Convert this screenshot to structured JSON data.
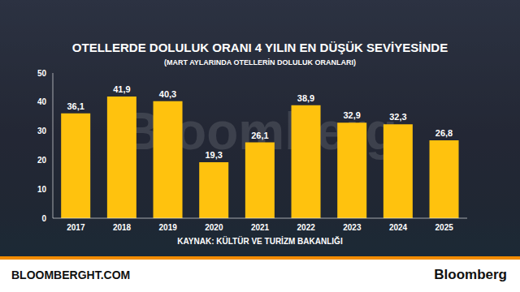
{
  "chart_data": {
    "type": "bar",
    "title": "OTELLERDE DOLULUK ORANI 4 YILIN EN DÜŞÜK SEVİYESİNDE",
    "subtitle": "(MART AYLARINDA OTELLERİN DOLULUK ORANLARI)",
    "source": "KAYNAK: KÜLTÜR VE TURİZM BAKANLIĞI",
    "footer_left": "BLOOMBERGHT.COM",
    "footer_right": "Bloomberg",
    "watermark": "Bloomberg",
    "categories": [
      "2017",
      "2018",
      "2019",
      "2020",
      "2021",
      "2022",
      "2023",
      "2024",
      "2025"
    ],
    "values": [
      36.1,
      41.9,
      40.3,
      19.3,
      26.1,
      38.9,
      32.9,
      32.3,
      26.8
    ],
    "value_labels": [
      "36,1",
      "41,9",
      "40,3",
      "19,3",
      "26,1",
      "38,9",
      "32,9",
      "32,3",
      "26,8"
    ],
    "color": "#ffc20e",
    "ylim": [
      0,
      50
    ],
    "yticks": [
      0,
      10,
      20,
      30,
      40,
      50
    ],
    "grid": false,
    "data_labels": true
  }
}
